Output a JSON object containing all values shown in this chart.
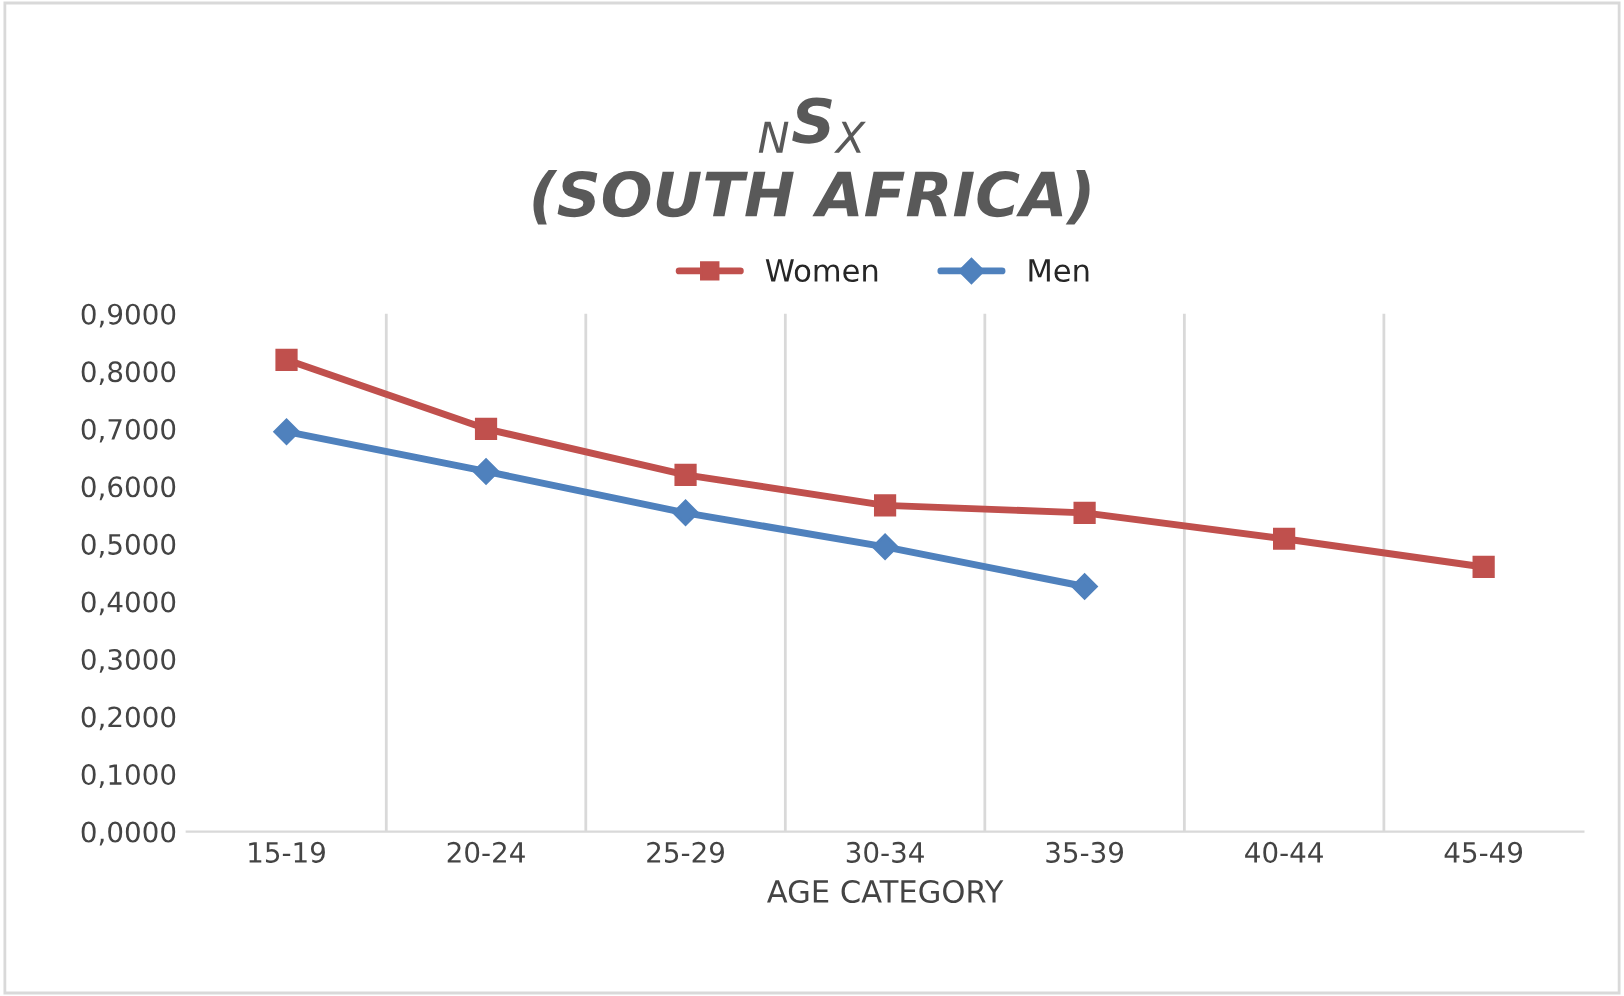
{
  "chart_data": {
    "type": "line",
    "title": "$_{N}$S$_{X}$\n(SOUTH AFRICA)",
    "xlabel": "AGE CATEGORY",
    "categories": [
      "15-19",
      "20-24",
      "25-29",
      "30-34",
      "35-39",
      "40-44",
      "45-49"
    ],
    "series": [
      {
        "name": "Women",
        "color": "#c0504d",
        "marker": "square",
        "values": [
          0.82,
          0.7,
          0.62,
          0.567,
          0.554,
          0.509,
          0.46
        ]
      },
      {
        "name": "Men",
        "color": "#4f81bd",
        "marker": "diamond",
        "values": [
          0.695,
          0.626,
          0.554,
          0.495,
          0.426,
          null,
          null
        ]
      }
    ],
    "ylim": [
      0,
      0.9
    ],
    "yticks": [
      {
        "value": 0,
        "label": "0,0000"
      },
      {
        "value": 0.1,
        "label": "0,1000"
      },
      {
        "value": 0.2,
        "label": "0,2000"
      },
      {
        "value": 0.3,
        "label": "0,3000"
      },
      {
        "value": 0.4,
        "label": "0,4000"
      },
      {
        "value": 0.5,
        "label": "0,5000"
      },
      {
        "value": 0.6,
        "label": "0,6000"
      },
      {
        "value": 0.7,
        "label": "0,7000"
      },
      {
        "value": 0.8,
        "label": "0,8000"
      },
      {
        "value": 0.9,
        "label": "0,9000"
      }
    ],
    "grid": "x",
    "legend": "top",
    "line_style": "solid"
  }
}
